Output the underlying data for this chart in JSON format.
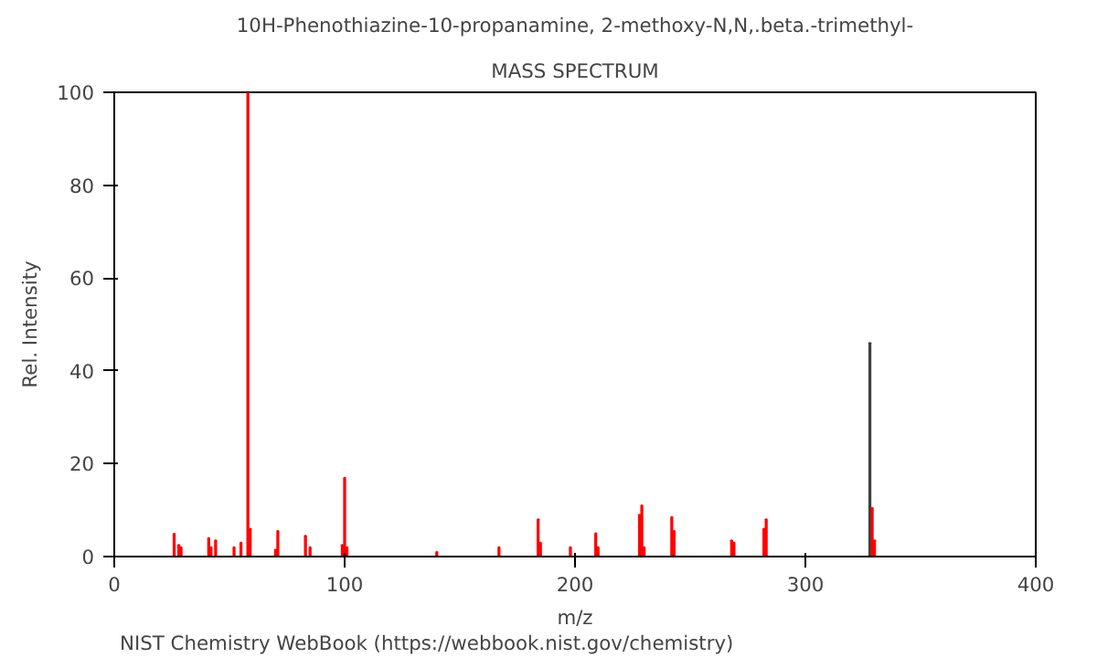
{
  "chart_data": {
    "type": "bar",
    "title": "10H-Phenothiazine-10-propanamine, 2-methoxy-N,N,.beta.-trimethyl-",
    "subtitle": "MASS SPECTRUM",
    "xlabel": "m/z",
    "ylabel": "Rel. Intensity",
    "x": [
      26,
      28,
      29,
      41,
      42,
      44,
      52,
      55,
      58,
      59,
      70,
      71,
      83,
      85,
      99,
      100,
      101,
      140,
      167,
      184,
      185,
      198,
      209,
      210,
      228,
      229,
      230,
      242,
      243,
      268,
      269,
      282,
      283,
      328,
      329,
      330
    ],
    "values": [
      4.9,
      2.5,
      2,
      4,
      2,
      3.5,
      2,
      3,
      100,
      6,
      1.5,
      5.5,
      4.5,
      2,
      2.5,
      17,
      2,
      1,
      2,
      8,
      3,
      2,
      5,
      2,
      9,
      11,
      2,
      8.5,
      5.5,
      3.5,
      3,
      6,
      8,
      46,
      10.5,
      3.5
    ],
    "colors": [
      "#ff0000",
      "#ff0000",
      "#ff0000",
      "#ff0000",
      "#ff0000",
      "#ff0000",
      "#ff0000",
      "#ff0000",
      "#ff0000",
      "#ff0000",
      "#ff0000",
      "#ff0000",
      "#ff0000",
      "#ff0000",
      "#ff0000",
      "#ff0000",
      "#ff0000",
      "#ff0000",
      "#ff0000",
      "#ff0000",
      "#ff0000",
      "#ff0000",
      "#ff0000",
      "#ff0000",
      "#ff0000",
      "#ff0000",
      "#ff0000",
      "#ff0000",
      "#ff0000",
      "#ff0000",
      "#ff0000",
      "#ff0000",
      "#ff0000",
      "#404040",
      "#ff0000",
      "#ff0000"
    ],
    "xlim": [
      0,
      400
    ],
    "xticks": [
      0,
      100,
      200,
      300,
      400
    ],
    "ylim": [
      0,
      100
    ],
    "yticks": [
      0,
      20,
      40,
      60,
      80,
      100
    ],
    "grid": false,
    "annotations": [
      "NIST Chemistry WebBook (https://webbook.nist.gov/chemistry)"
    ]
  }
}
